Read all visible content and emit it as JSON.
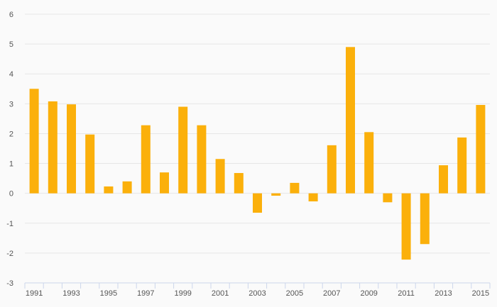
{
  "chart_data": {
    "type": "bar",
    "title": "",
    "xlabel": "",
    "ylabel": "",
    "categories": [
      "1991",
      "1992",
      "1993",
      "1994",
      "1995",
      "1996",
      "1997",
      "1998",
      "1999",
      "2000",
      "2001",
      "2002",
      "2003",
      "2004",
      "2005",
      "2006",
      "2007",
      "2008",
      "2009",
      "2010",
      "2011",
      "2012",
      "2013",
      "2014",
      "2015"
    ],
    "x_tick_labels": [
      "1991",
      "1993",
      "1995",
      "1997",
      "1999",
      "2001",
      "2003",
      "2005",
      "2007",
      "2009",
      "2011",
      "2013",
      "2015"
    ],
    "values": [
      3.5,
      3.08,
      2.98,
      1.97,
      0.23,
      0.4,
      2.28,
      0.7,
      2.9,
      2.28,
      1.15,
      0.68,
      -0.65,
      -0.08,
      0.35,
      -0.27,
      1.61,
      4.9,
      2.05,
      -0.3,
      -2.22,
      -1.7,
      0.94,
      1.87,
      2.96
    ],
    "ylim": [
      -3,
      6
    ],
    "y_ticks": [
      "-3",
      "-2",
      "-1",
      "0",
      "1",
      "2",
      "3",
      "4",
      "5",
      "6"
    ],
    "grid": true,
    "bar_color": "#fbb00b"
  }
}
